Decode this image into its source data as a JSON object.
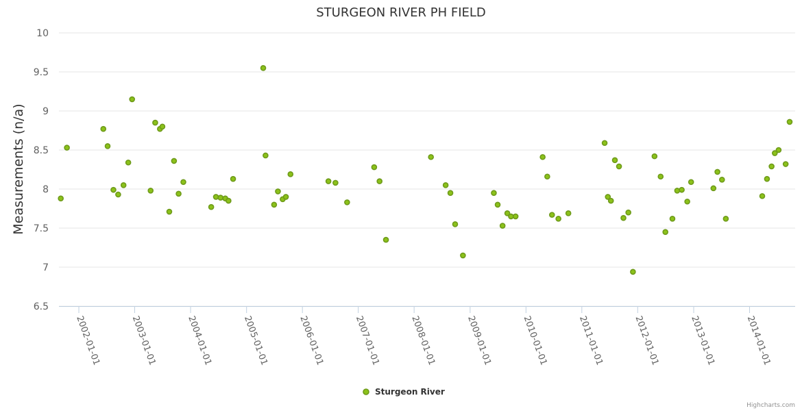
{
  "credits": "Highcharts.com",
  "chart_data": {
    "type": "scatter",
    "title": "STURGEON RIVER PH FIELD",
    "xlabel": "",
    "ylabel": "Measurements (n/a)",
    "ylim": [
      6.5,
      10
    ],
    "yticks": [
      "6.5",
      "7",
      "7.5",
      "8",
      "8.5",
      "9",
      "9.5",
      "10"
    ],
    "xlim": [
      "2001-08-24",
      "2014-10-26"
    ],
    "xticks": [
      "2002-01-01",
      "2003-01-01",
      "2004-01-01",
      "2005-01-01",
      "2006-01-01",
      "2007-01-01",
      "2008-01-01",
      "2009-01-01",
      "2010-01-01",
      "2011-01-01",
      "2012-01-01",
      "2013-01-01",
      "2014-01-01"
    ],
    "grid": true,
    "legend_position": "bottom-center",
    "color": "#6e9a1a",
    "marker_fill": "#8cc21a",
    "series": [
      {
        "name": "Sturgeon River",
        "points": [
          [
            "2001-09-05",
            7.88
          ],
          [
            "2001-10-15",
            8.53
          ],
          [
            "2002-06-10",
            8.77
          ],
          [
            "2002-07-08",
            8.55
          ],
          [
            "2002-08-15",
            7.99
          ],
          [
            "2002-09-15",
            7.93
          ],
          [
            "2002-10-20",
            8.05
          ],
          [
            "2002-11-20",
            8.34
          ],
          [
            "2002-12-15",
            9.15
          ],
          [
            "2003-04-15",
            7.98
          ],
          [
            "2003-05-15",
            8.85
          ],
          [
            "2003-06-15",
            8.77
          ],
          [
            "2003-07-01",
            8.8
          ],
          [
            "2003-08-15",
            7.71
          ],
          [
            "2003-09-15",
            8.36
          ],
          [
            "2003-10-15",
            7.94
          ],
          [
            "2003-11-15",
            8.09
          ],
          [
            "2004-05-15",
            7.77
          ],
          [
            "2004-06-15",
            7.9
          ],
          [
            "2004-07-15",
            7.89
          ],
          [
            "2004-08-15",
            7.88
          ],
          [
            "2004-09-05",
            7.85
          ],
          [
            "2004-10-05",
            8.13
          ],
          [
            "2005-04-20",
            9.55
          ],
          [
            "2005-05-05",
            8.43
          ],
          [
            "2005-06-30",
            7.8
          ],
          [
            "2005-07-25",
            7.97
          ],
          [
            "2005-08-25",
            7.87
          ],
          [
            "2005-09-15",
            7.9
          ],
          [
            "2005-10-15",
            8.19
          ],
          [
            "2006-06-20",
            8.1
          ],
          [
            "2006-08-05",
            8.08
          ],
          [
            "2006-10-20",
            7.83
          ],
          [
            "2007-04-15",
            8.28
          ],
          [
            "2007-05-20",
            8.1
          ],
          [
            "2007-07-01",
            7.35
          ],
          [
            "2008-04-20",
            8.41
          ],
          [
            "2008-07-25",
            8.05
          ],
          [
            "2008-08-25",
            7.95
          ],
          [
            "2008-09-25",
            7.55
          ],
          [
            "2008-11-15",
            7.15
          ],
          [
            "2009-06-05",
            7.95
          ],
          [
            "2009-06-30",
            7.8
          ],
          [
            "2009-08-01",
            7.53
          ],
          [
            "2009-09-01",
            7.69
          ],
          [
            "2009-09-25",
            7.65
          ],
          [
            "2009-10-25",
            7.65
          ],
          [
            "2010-04-20",
            8.41
          ],
          [
            "2010-05-20",
            8.16
          ],
          [
            "2010-06-20",
            7.67
          ],
          [
            "2010-08-01",
            7.62
          ],
          [
            "2010-10-05",
            7.69
          ],
          [
            "2011-05-30",
            8.59
          ],
          [
            "2011-06-20",
            7.9
          ],
          [
            "2011-07-10",
            7.85
          ],
          [
            "2011-08-05",
            8.37
          ],
          [
            "2011-09-01",
            8.29
          ],
          [
            "2011-09-30",
            7.63
          ],
          [
            "2011-11-01",
            7.7
          ],
          [
            "2011-12-01",
            6.94
          ],
          [
            "2012-04-20",
            8.42
          ],
          [
            "2012-05-30",
            8.16
          ],
          [
            "2012-06-30",
            7.45
          ],
          [
            "2012-08-15",
            7.62
          ],
          [
            "2012-09-15",
            7.98
          ],
          [
            "2012-10-15",
            7.99
          ],
          [
            "2012-11-20",
            7.84
          ],
          [
            "2012-12-15",
            8.09
          ],
          [
            "2013-05-10",
            8.01
          ],
          [
            "2013-06-05",
            8.22
          ],
          [
            "2013-07-05",
            8.12
          ],
          [
            "2013-07-30",
            7.62
          ],
          [
            "2014-03-25",
            7.91
          ],
          [
            "2014-04-25",
            8.13
          ],
          [
            "2014-05-25",
            8.29
          ],
          [
            "2014-06-15",
            8.46
          ],
          [
            "2014-07-10",
            8.5
          ],
          [
            "2014-08-25",
            8.32
          ],
          [
            "2014-09-20",
            8.86
          ]
        ]
      }
    ]
  }
}
